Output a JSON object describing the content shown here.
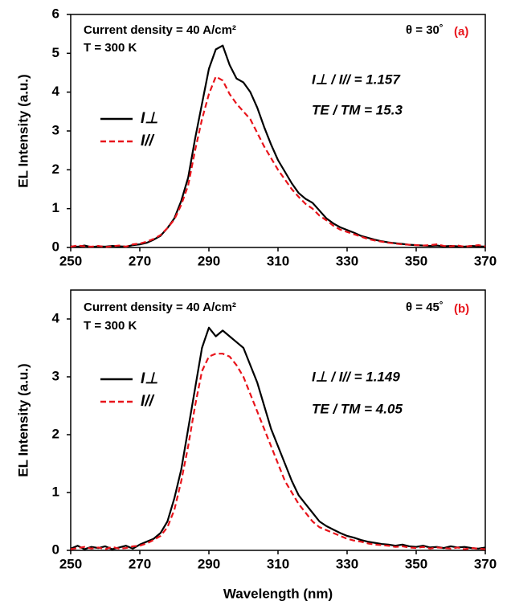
{
  "chart_data": [
    {
      "type": "line",
      "ylabel": "EL Intensity (a.u.)",
      "x": [
        250,
        252,
        254,
        256,
        258,
        260,
        262,
        264,
        266,
        268,
        270,
        272,
        274,
        276,
        278,
        280,
        282,
        284,
        286,
        288,
        290,
        292,
        294,
        296,
        298,
        300,
        302,
        304,
        306,
        308,
        310,
        312,
        314,
        316,
        318,
        320,
        322,
        324,
        326,
        328,
        330,
        332,
        334,
        336,
        338,
        340,
        342,
        344,
        346,
        348,
        350,
        352,
        354,
        356,
        358,
        360,
        362,
        364,
        366,
        368,
        370
      ],
      "series": [
        {
          "name": "I⊥",
          "color": "#000000",
          "dash": false,
          "values": [
            0.03,
            0.02,
            0.05,
            0.01,
            0.03,
            0.02,
            0.04,
            0.03,
            0.02,
            0.06,
            0.08,
            0.12,
            0.2,
            0.3,
            0.5,
            0.75,
            1.2,
            1.8,
            2.8,
            3.7,
            4.6,
            5.1,
            5.2,
            4.7,
            4.35,
            4.25,
            4.0,
            3.6,
            3.1,
            2.65,
            2.25,
            1.95,
            1.65,
            1.4,
            1.25,
            1.15,
            0.95,
            0.75,
            0.62,
            0.52,
            0.45,
            0.38,
            0.3,
            0.25,
            0.2,
            0.16,
            0.13,
            0.11,
            0.09,
            0.07,
            0.06,
            0.05,
            0.04,
            0.05,
            0.03,
            0.04,
            0.03,
            0.02,
            0.04,
            0.03,
            0.02
          ]
        },
        {
          "name": "I//",
          "color": "#e8141b",
          "dash": true,
          "values": [
            0.02,
            0.05,
            0.03,
            0.02,
            0.04,
            0.01,
            0.03,
            0.05,
            0.02,
            0.08,
            0.1,
            0.15,
            0.22,
            0.32,
            0.5,
            0.72,
            1.1,
            1.6,
            2.5,
            3.3,
            3.95,
            4.4,
            4.3,
            3.95,
            3.7,
            3.5,
            3.3,
            2.95,
            2.6,
            2.3,
            2.0,
            1.75,
            1.5,
            1.3,
            1.12,
            1.0,
            0.82,
            0.7,
            0.56,
            0.46,
            0.4,
            0.34,
            0.28,
            0.22,
            0.18,
            0.15,
            0.12,
            0.1,
            0.08,
            0.07,
            0.06,
            0.05,
            0.06,
            0.08,
            0.04,
            0.03,
            0.05,
            0.02,
            0.04,
            0.06,
            0.03
          ]
        }
      ],
      "xlim": [
        250,
        370
      ],
      "xticks": [
        250,
        270,
        290,
        310,
        330,
        350,
        370
      ],
      "ylim": [
        0,
        6
      ],
      "yticks": [
        0,
        1,
        2,
        3,
        4,
        5,
        6
      ],
      "annotations": [
        {
          "text": "Current density = 40 A/cm²",
          "color": "#000000"
        },
        {
          "text": "T = 300 K",
          "color": "#000000"
        },
        {
          "text": "θ = 30˚",
          "color": "#000000"
        },
        {
          "text": "(a)",
          "color": "#e8141b"
        },
        {
          "text": "I⊥ / I// = 1.157",
          "color": "#000000"
        },
        {
          "text": "TE / TM = 15.3",
          "color": "#000000"
        }
      ]
    },
    {
      "type": "line",
      "ylabel": "EL Intensity (a.u.)",
      "xlabel": "Wavelength (nm)",
      "x": [
        250,
        252,
        254,
        256,
        258,
        260,
        262,
        264,
        266,
        268,
        270,
        272,
        274,
        276,
        278,
        280,
        282,
        284,
        286,
        288,
        290,
        292,
        294,
        296,
        298,
        300,
        302,
        304,
        306,
        308,
        310,
        312,
        314,
        316,
        318,
        320,
        322,
        324,
        326,
        328,
        330,
        332,
        334,
        336,
        338,
        340,
        342,
        344,
        346,
        348,
        350,
        352,
        354,
        356,
        358,
        360,
        362,
        364,
        366,
        368,
        370
      ],
      "series": [
        {
          "name": "I⊥",
          "color": "#000000",
          "dash": false,
          "values": [
            0.03,
            0.08,
            0.02,
            0.06,
            0.04,
            0.07,
            0.02,
            0.05,
            0.08,
            0.03,
            0.1,
            0.15,
            0.2,
            0.3,
            0.5,
            0.9,
            1.4,
            2.1,
            2.8,
            3.5,
            3.85,
            3.7,
            3.8,
            3.7,
            3.6,
            3.5,
            3.2,
            2.9,
            2.5,
            2.1,
            1.8,
            1.5,
            1.2,
            0.95,
            0.8,
            0.65,
            0.5,
            0.42,
            0.36,
            0.3,
            0.25,
            0.22,
            0.18,
            0.15,
            0.13,
            0.11,
            0.1,
            0.08,
            0.1,
            0.07,
            0.06,
            0.08,
            0.05,
            0.06,
            0.04,
            0.07,
            0.05,
            0.06,
            0.04,
            0.03,
            0.05
          ]
        },
        {
          "name": "I//",
          "color": "#e8141b",
          "dash": true,
          "values": [
            0.02,
            0.04,
            0.06,
            0.03,
            0.05,
            0.02,
            0.06,
            0.03,
            0.04,
            0.07,
            0.08,
            0.12,
            0.18,
            0.25,
            0.4,
            0.7,
            1.2,
            1.8,
            2.5,
            3.1,
            3.35,
            3.4,
            3.4,
            3.35,
            3.2,
            3.0,
            2.7,
            2.4,
            2.1,
            1.8,
            1.5,
            1.2,
            1.0,
            0.8,
            0.65,
            0.5,
            0.4,
            0.35,
            0.3,
            0.25,
            0.2,
            0.17,
            0.15,
            0.12,
            0.1,
            0.09,
            0.08,
            0.06,
            0.07,
            0.05,
            0.04,
            0.06,
            0.03,
            0.05,
            0.04,
            0.03,
            0.05,
            0.02,
            0.04,
            0.03,
            0.02
          ]
        }
      ],
      "xlim": [
        250,
        370
      ],
      "xticks": [
        250,
        270,
        290,
        310,
        330,
        350,
        370
      ],
      "ylim": [
        0,
        4.5
      ],
      "yticks": [
        0,
        1,
        2,
        3,
        4
      ],
      "annotations": [
        {
          "text": "Current density = 40 A/cm²",
          "color": "#000000"
        },
        {
          "text": "T = 300 K",
          "color": "#000000"
        },
        {
          "text": "θ = 45˚",
          "color": "#000000"
        },
        {
          "text": "(b)",
          "color": "#e8141b"
        },
        {
          "text": "I⊥ / I// = 1.149",
          "color": "#000000"
        },
        {
          "text": "TE / TM = 4.05",
          "color": "#000000"
        }
      ]
    }
  ]
}
